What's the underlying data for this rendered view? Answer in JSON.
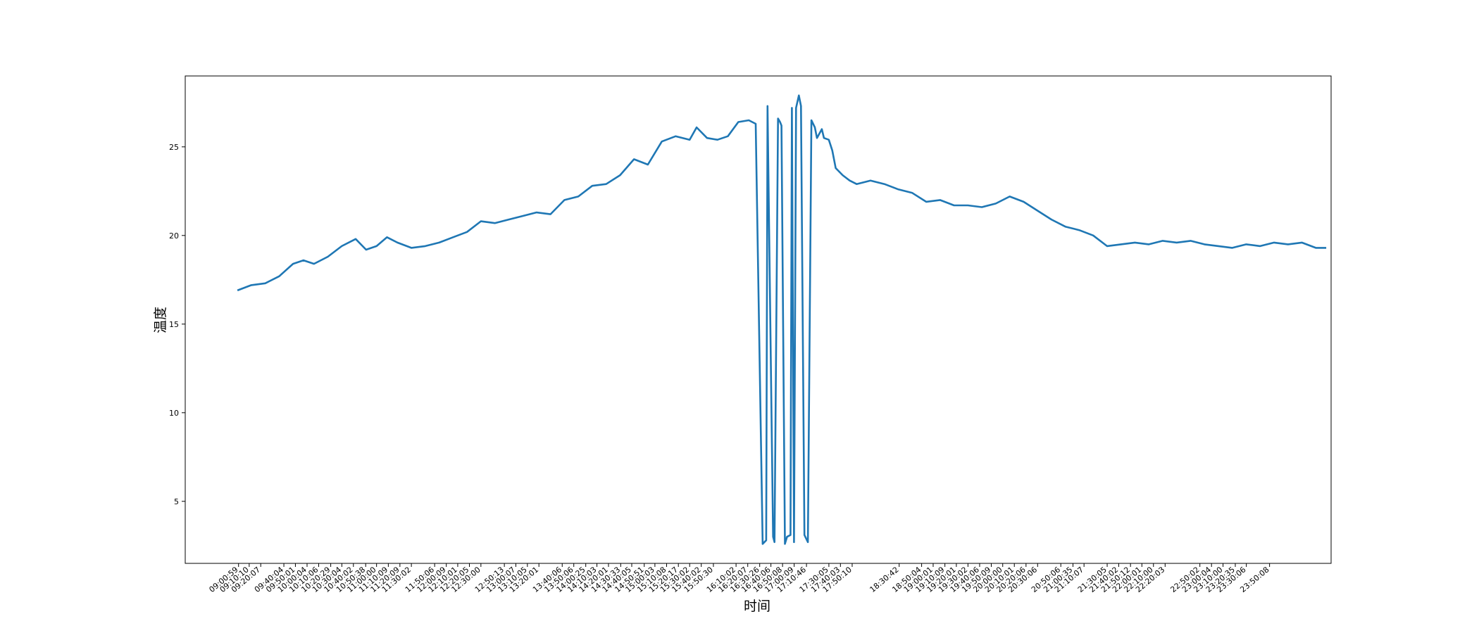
{
  "chart_data": {
    "type": "line",
    "title": "",
    "xlabel": "时间",
    "ylabel": "温度",
    "ylim": [
      1.5,
      29.0
    ],
    "xlim": [
      8.25,
      24.72
    ],
    "x_is_time_of_day_hours": true,
    "yticks": [
      5,
      10,
      15,
      20,
      25
    ],
    "grid": false,
    "legend": "none",
    "series_color": "#1f77b4",
    "xtick_labels": [
      "09:00:59",
      "09:10:10",
      "09:20:07",
      "09:40:04",
      "09:50:01",
      "10:00:04",
      "10:10:06",
      "10:20:29",
      "10:30:04",
      "10:40:02",
      "10:50:38",
      "11:00:00",
      "11:10:09",
      "11:20:09",
      "11:30:02",
      "11:50:06",
      "12:00:09",
      "12:10:01",
      "12:20:05",
      "12:30:00",
      "12:50:13",
      "13:00:07",
      "13:10:05",
      "13:20:01",
      "13:40:06",
      "13:50:06",
      "14:00:25",
      "14:10:03",
      "14:20:01",
      "14:30:33",
      "14:40:05",
      "14:50:51",
      "15:00:03",
      "15:10:08",
      "15:20:17",
      "15:30:02",
      "15:40:02",
      "15:50:30",
      "16:10:02",
      "16:20:07",
      "16:30:26",
      "16:40:06",
      "16:50:08",
      "17:00:09",
      "17:10:46",
      "17:30:05",
      "17:40:03",
      "17:50:10",
      "18:30:42",
      "18:50:04",
      "19:00:01",
      "19:10:09",
      "19:20:01",
      "19:30:02",
      "19:40:06",
      "19:50:09",
      "20:00:00",
      "20:10:01",
      "20:20:06",
      "20:30:06",
      "20:50:06",
      "21:00:35",
      "21:10:07",
      "21:30:05",
      "21:40:02",
      "21:50:12",
      "22:00:01",
      "22:10:00",
      "22:20:03",
      "22:50:02",
      "23:00:04",
      "23:10:00",
      "23:20:35",
      "23:30:06",
      "23:50:08"
    ],
    "series": [
      {
        "x": [
          9.0,
          9.2,
          9.4,
          9.6,
          9.8,
          9.95,
          10.1,
          10.3,
          10.5,
          10.7,
          10.85,
          11.0,
          11.15,
          11.3,
          11.5,
          11.7,
          11.9,
          12.1,
          12.3,
          12.5,
          12.7,
          12.9,
          13.1,
          13.3,
          13.5,
          13.7,
          13.9,
          14.1,
          14.3,
          14.5,
          14.7,
          14.9,
          15.1,
          15.3,
          15.5,
          15.6,
          15.75,
          15.9,
          16.05,
          16.2,
          16.35,
          16.45,
          16.55,
          16.6,
          16.62,
          16.7,
          16.72,
          16.77,
          16.8,
          16.82,
          16.87,
          16.9,
          16.95,
          16.97,
          17.0,
          17.03,
          17.07,
          17.1,
          17.15,
          17.2,
          17.25,
          17.3,
          17.33,
          17.4,
          17.43,
          17.5,
          17.55,
          17.6,
          17.7,
          17.8,
          17.9,
          18.0,
          18.1,
          18.3,
          18.5,
          18.7,
          18.9,
          19.1,
          19.3,
          19.5,
          19.7,
          19.9,
          20.1,
          20.3,
          20.5,
          20.7,
          20.9,
          21.1,
          21.3,
          21.5,
          21.7,
          21.9,
          22.1,
          22.3,
          22.5,
          22.7,
          22.9,
          23.1,
          23.3,
          23.5,
          23.7,
          23.9,
          24.1,
          24.3,
          24.5,
          24.65
        ],
        "y": [
          16.9,
          17.2,
          17.3,
          17.7,
          18.4,
          18.6,
          18.4,
          18.8,
          19.4,
          19.8,
          19.2,
          19.4,
          19.9,
          19.6,
          19.3,
          19.4,
          19.6,
          19.9,
          20.2,
          20.8,
          20.7,
          20.9,
          21.1,
          21.3,
          21.2,
          22.0,
          22.2,
          22.8,
          22.9,
          23.4,
          24.3,
          24.0,
          25.3,
          25.6,
          25.4,
          26.1,
          25.5,
          25.4,
          25.6,
          26.4,
          26.5,
          26.3,
          2.6,
          2.8,
          27.3,
          3.0,
          2.7,
          26.6,
          26.4,
          26.2,
          2.6,
          3.0,
          3.1,
          27.2,
          2.7,
          27.2,
          27.9,
          27.3,
          3.1,
          2.7,
          26.5,
          26.1,
          25.5,
          26.0,
          25.5,
          25.4,
          24.8,
          23.8,
          23.4,
          23.1,
          22.9,
          23.0,
          23.1,
          22.9,
          22.6,
          22.4,
          21.9,
          22.0,
          21.7,
          21.7,
          21.6,
          21.8,
          22.2,
          21.9,
          21.4,
          20.9,
          20.5,
          20.3,
          20.0,
          19.4,
          19.5,
          19.6,
          19.5,
          19.7,
          19.6,
          19.7,
          19.5,
          19.4,
          19.3,
          19.5,
          19.4,
          19.6,
          19.5,
          19.6,
          19.3,
          19.3
        ]
      }
    ]
  }
}
